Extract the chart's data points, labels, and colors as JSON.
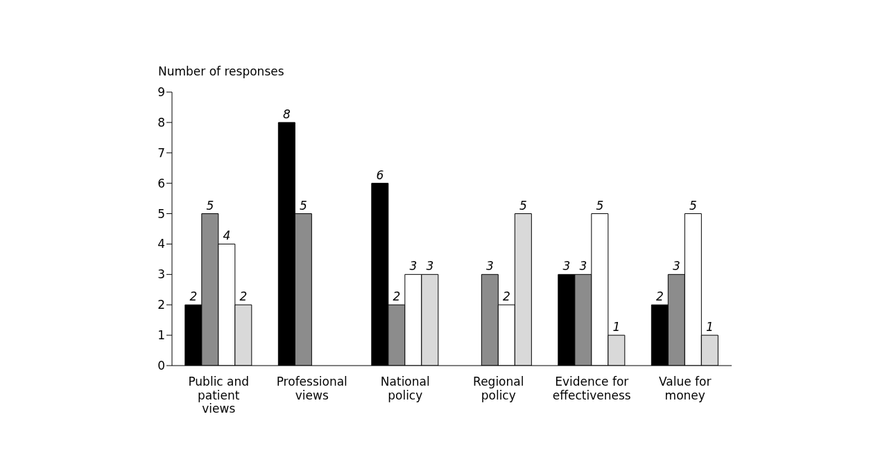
{
  "chart_data": {
    "type": "bar",
    "ylabel": "Number of responses",
    "categories": [
      "Public and patient views",
      "Professional views",
      "National policy",
      "Regional policy",
      "Evidence for effectiveness",
      "Value for money"
    ],
    "series": [
      {
        "color": "#000000",
        "values": [
          2,
          8,
          6,
          null,
          3,
          2
        ]
      },
      {
        "color": "#8c8c8c",
        "values": [
          5,
          5,
          2,
          3,
          3,
          3
        ]
      },
      {
        "color": "#ffffff",
        "values": [
          4,
          null,
          3,
          2,
          5,
          5
        ]
      },
      {
        "color": "#d9d9d9",
        "values": [
          2,
          null,
          3,
          5,
          1,
          1
        ]
      }
    ],
    "ylim": [
      0,
      9
    ],
    "yticks": [
      0,
      1,
      2,
      3,
      4,
      5,
      6,
      7,
      8,
      9
    ],
    "data_labels": true
  }
}
